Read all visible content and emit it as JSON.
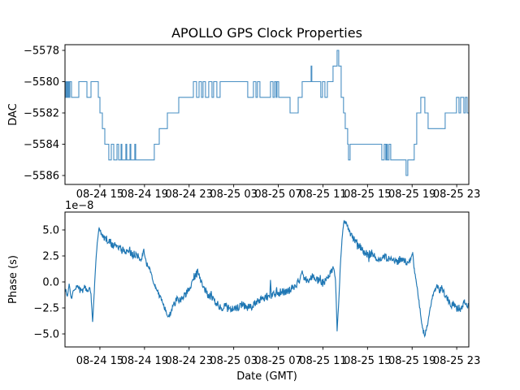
{
  "figure": {
    "background": "#ffffff",
    "axes_color": "#000000",
    "text_color": "#000000"
  },
  "chart_data": [
    {
      "type": "line",
      "title": "APOLLO GPS Clock Properties",
      "ylabel": "DAC",
      "xlabel": "",
      "line_color": "#4a90c4",
      "line_style": "steps-post",
      "grid": false,
      "legend": "none",
      "ylim": [
        -5586.6,
        -5577.6
      ],
      "xlim": [
        11.87,
        48.08
      ],
      "yticks": [
        -5578,
        -5580,
        -5582,
        -5584,
        -5586
      ],
      "ytick_labels": [
        "−5578",
        "−5580",
        "−5582",
        "−5584",
        "−5586"
      ],
      "xticks": [
        15,
        19,
        23,
        27,
        31,
        35,
        39,
        43,
        47
      ],
      "xtick_labels": [
        "08-24 15",
        "08-24 19",
        "08-24 23",
        "08-25 03",
        "08-25 07",
        "08-25 11",
        "08-25 15",
        "08-25 19",
        "08-25 23"
      ],
      "series": [
        {
          "name": "DAC",
          "steps": [
            [
              11.87,
              -5580
            ],
            [
              11.94,
              -5581
            ],
            [
              12.02,
              -5580
            ],
            [
              12.09,
              -5581
            ],
            [
              12.16,
              -5580
            ],
            [
              12.24,
              -5581
            ],
            [
              12.31,
              -5580
            ],
            [
              12.45,
              -5581
            ],
            [
              13.11,
              -5580
            ],
            [
              13.84,
              -5581
            ],
            [
              14.2,
              -5580
            ],
            [
              14.86,
              -5581
            ],
            [
              15.0,
              -5582
            ],
            [
              15.22,
              -5583
            ],
            [
              15.44,
              -5584
            ],
            [
              15.8,
              -5585
            ],
            [
              16.02,
              -5584
            ],
            [
              16.24,
              -5585
            ],
            [
              16.53,
              -5584
            ],
            [
              16.68,
              -5585
            ],
            [
              16.9,
              -5584
            ],
            [
              16.97,
              -5585
            ],
            [
              17.33,
              -5584
            ],
            [
              17.41,
              -5585
            ],
            [
              17.7,
              -5584
            ],
            [
              17.77,
              -5585
            ],
            [
              18.13,
              -5584
            ],
            [
              18.21,
              -5585
            ],
            [
              19.88,
              -5584
            ],
            [
              20.32,
              -5583
            ],
            [
              21.05,
              -5582
            ],
            [
              22.07,
              -5581
            ],
            [
              23.38,
              -5580
            ],
            [
              23.67,
              -5581
            ],
            [
              23.89,
              -5580
            ],
            [
              24.11,
              -5581
            ],
            [
              24.25,
              -5580
            ],
            [
              24.47,
              -5581
            ],
            [
              24.76,
              -5580
            ],
            [
              25.05,
              -5581
            ],
            [
              25.2,
              -5580
            ],
            [
              25.49,
              -5581
            ],
            [
              25.78,
              -5580
            ],
            [
              28.26,
              -5581
            ],
            [
              28.77,
              -5580
            ],
            [
              28.99,
              -5581
            ],
            [
              29.13,
              -5580
            ],
            [
              29.35,
              -5581
            ],
            [
              30.3,
              -5580
            ],
            [
              30.52,
              -5581
            ],
            [
              30.66,
              -5580
            ],
            [
              30.81,
              -5581
            ],
            [
              30.88,
              -5580
            ],
            [
              31.03,
              -5581
            ],
            [
              32.05,
              -5582
            ],
            [
              32.78,
              -5581
            ],
            [
              33.14,
              -5580
            ],
            [
              33.94,
              -5579
            ],
            [
              34.01,
              -5580
            ],
            [
              34.81,
              -5581
            ],
            [
              34.96,
              -5580
            ],
            [
              35.18,
              -5581
            ],
            [
              35.4,
              -5580
            ],
            [
              35.91,
              -5579
            ],
            [
              36.27,
              -5578
            ],
            [
              36.42,
              -5579
            ],
            [
              36.64,
              -5581
            ],
            [
              36.85,
              -5582
            ],
            [
              37.0,
              -5583
            ],
            [
              37.22,
              -5584
            ],
            [
              37.29,
              -5585
            ],
            [
              37.44,
              -5584
            ],
            [
              40.28,
              -5585
            ],
            [
              40.5,
              -5584
            ],
            [
              40.64,
              -5585
            ],
            [
              40.72,
              -5584
            ],
            [
              40.79,
              -5585
            ],
            [
              40.93,
              -5584
            ],
            [
              41.08,
              -5585
            ],
            [
              42.46,
              -5586
            ],
            [
              42.61,
              -5585
            ],
            [
              43.19,
              -5584
            ],
            [
              43.41,
              -5582
            ],
            [
              43.78,
              -5581
            ],
            [
              44.14,
              -5582
            ],
            [
              44.43,
              -5583
            ],
            [
              45.96,
              -5582
            ],
            [
              46.98,
              -5581
            ],
            [
              47.2,
              -5582
            ],
            [
              47.35,
              -5581
            ],
            [
              47.64,
              -5582
            ],
            [
              47.78,
              -5581
            ],
            [
              47.93,
              -5582
            ],
            [
              48.08,
              -5582
            ]
          ]
        }
      ]
    },
    {
      "type": "line",
      "title": "",
      "ylabel": "Phase (s)",
      "xlabel": "Date (GMT)",
      "offset_text": "1e−8",
      "line_color": "#1f77b4",
      "line_style": "noisy-line",
      "grid": false,
      "legend": "none",
      "ylim": [
        -6.05,
        6.45
      ],
      "xlim": [
        11.87,
        48.08
      ],
      "yticks": [
        5.0,
        2.5,
        0.0,
        -2.5,
        -5.0
      ],
      "ytick_labels": [
        "5.0",
        "2.5",
        "0.0",
        "−2.5",
        "−5.0"
      ],
      "xticks": [
        15,
        19,
        23,
        27,
        31,
        35,
        39,
        43,
        47
      ],
      "xtick_labels": [
        "08-24 15",
        "08-24 19",
        "08-24 23",
        "08-25 03",
        "08-25 07",
        "08-25 11",
        "08-25 15",
        "08-25 19",
        "08-25 23"
      ],
      "unit_scale": "1e-8 s",
      "series": [
        {
          "name": "Phase",
          "noise_amplitude": 0.45,
          "samples_per_hour": 24,
          "seed": 9,
          "anchors": [
            [
              11.87,
              -0.5
            ],
            [
              12.09,
              -1.3
            ],
            [
              12.24,
              -0.3
            ],
            [
              12.45,
              -1.6
            ],
            [
              12.6,
              -0.9
            ],
            [
              12.96,
              -0.6
            ],
            [
              13.33,
              -1.0
            ],
            [
              13.62,
              -0.5
            ],
            [
              13.91,
              -0.9
            ],
            [
              14.06,
              -0.4
            ],
            [
              14.2,
              -1.2
            ],
            [
              14.35,
              -3.9
            ],
            [
              14.49,
              -1.0
            ],
            [
              14.64,
              2.0
            ],
            [
              14.78,
              4.0
            ],
            [
              14.93,
              5.3
            ],
            [
              15.22,
              4.4
            ],
            [
              15.51,
              4.2
            ],
            [
              15.88,
              3.8
            ],
            [
              16.39,
              3.4
            ],
            [
              16.97,
              3.1
            ],
            [
              17.55,
              2.9
            ],
            [
              18.06,
              2.6
            ],
            [
              18.43,
              2.4
            ],
            [
              18.72,
              2.2
            ],
            [
              18.94,
              3.0
            ],
            [
              19.16,
              1.8
            ],
            [
              19.45,
              1.2
            ],
            [
              19.74,
              0.2
            ],
            [
              20.03,
              -0.6
            ],
            [
              20.39,
              -1.4
            ],
            [
              20.76,
              -2.4
            ],
            [
              21.12,
              -3.5
            ],
            [
              21.34,
              -3.0
            ],
            [
              21.56,
              -2.2
            ],
            [
              21.92,
              -1.8
            ],
            [
              22.36,
              -1.6
            ],
            [
              22.8,
              -1.0
            ],
            [
              23.24,
              -0.2
            ],
            [
              23.6,
              0.7
            ],
            [
              23.82,
              0.9
            ],
            [
              24.11,
              -0.1
            ],
            [
              24.4,
              -0.7
            ],
            [
              24.69,
              -1.2
            ],
            [
              25.13,
              -1.7
            ],
            [
              25.57,
              -2.2
            ],
            [
              26.0,
              -2.5
            ],
            [
              26.44,
              -2.3
            ],
            [
              26.88,
              -2.6
            ],
            [
              27.31,
              -2.4
            ],
            [
              27.75,
              -2.2
            ],
            [
              28.19,
              -2.5
            ],
            [
              28.63,
              -2.3
            ],
            [
              29.06,
              -1.9
            ],
            [
              29.5,
              -1.7
            ],
            [
              29.94,
              -1.4
            ],
            [
              30.23,
              -1.5
            ],
            [
              30.3,
              0.2
            ],
            [
              30.38,
              -1.3
            ],
            [
              30.81,
              -1.2
            ],
            [
              31.25,
              -1.0
            ],
            [
              31.68,
              -0.9
            ],
            [
              32.12,
              -0.7
            ],
            [
              32.56,
              -0.3
            ],
            [
              32.92,
              0.2
            ],
            [
              33.14,
              1.0
            ],
            [
              33.36,
              0.1
            ],
            [
              33.72,
              0.3
            ],
            [
              34.16,
              0.5
            ],
            [
              34.6,
              0.1
            ],
            [
              35.03,
              -0.1
            ],
            [
              35.4,
              0.4
            ],
            [
              35.69,
              0.9
            ],
            [
              35.98,
              1.3
            ],
            [
              36.13,
              0.2
            ],
            [
              36.2,
              -2.0
            ],
            [
              36.27,
              -4.7
            ],
            [
              36.42,
              -2.0
            ],
            [
              36.56,
              1.5
            ],
            [
              36.71,
              4.0
            ],
            [
              36.85,
              5.5
            ],
            [
              37.0,
              5.9
            ],
            [
              37.22,
              5.2
            ],
            [
              37.51,
              4.6
            ],
            [
              37.88,
              4.0
            ],
            [
              38.32,
              3.4
            ],
            [
              38.68,
              2.9
            ],
            [
              39.04,
              2.6
            ],
            [
              39.41,
              2.8
            ],
            [
              39.77,
              2.4
            ],
            [
              40.14,
              2.2
            ],
            [
              40.5,
              2.5
            ],
            [
              40.86,
              2.1
            ],
            [
              41.23,
              2.3
            ],
            [
              41.59,
              1.9
            ],
            [
              41.95,
              2.2
            ],
            [
              42.32,
              2.0
            ],
            [
              42.61,
              1.8
            ],
            [
              42.83,
              2.1
            ],
            [
              43.05,
              2.8
            ],
            [
              43.19,
              1.2
            ],
            [
              43.34,
              0.2
            ],
            [
              43.49,
              -0.8
            ],
            [
              43.63,
              -2.0
            ],
            [
              43.85,
              -3.8
            ],
            [
              44.0,
              -4.8
            ],
            [
              44.14,
              -5.1
            ],
            [
              44.36,
              -4.2
            ],
            [
              44.58,
              -2.8
            ],
            [
              44.8,
              -1.5
            ],
            [
              45.02,
              -0.7
            ],
            [
              45.24,
              -0.4
            ],
            [
              45.45,
              -0.8
            ],
            [
              45.67,
              -0.6
            ],
            [
              45.89,
              -1.1
            ],
            [
              46.11,
              -1.5
            ],
            [
              46.33,
              -1.9
            ],
            [
              46.55,
              -2.3
            ],
            [
              46.77,
              -2.1
            ],
            [
              46.98,
              -2.5
            ],
            [
              47.2,
              -2.4
            ],
            [
              47.35,
              -2.7
            ],
            [
              47.57,
              -2.2
            ],
            [
              47.71,
              -1.8
            ],
            [
              47.86,
              -2.0
            ],
            [
              48.0,
              -2.4
            ],
            [
              48.08,
              -2.2
            ]
          ]
        }
      ]
    }
  ]
}
